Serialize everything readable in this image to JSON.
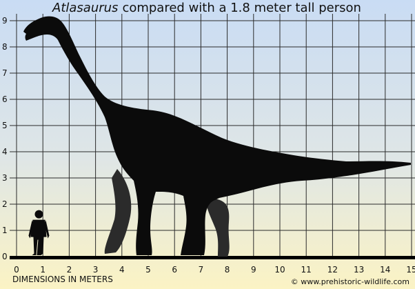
{
  "title": {
    "species": "Atlasaurus",
    "rest": "compared with a 1.8 meter tall person"
  },
  "axes": {
    "x_label": "DIMENSIONS IN METERS",
    "x_ticks": [
      "0",
      "1",
      "2",
      "3",
      "4",
      "5",
      "6",
      "7",
      "8",
      "9",
      "10",
      "11",
      "12",
      "13",
      "14",
      "15"
    ],
    "y_ticks": [
      "0",
      "1",
      "2",
      "3",
      "4",
      "5",
      "6",
      "7",
      "8",
      "9"
    ]
  },
  "credit": "© www.prehistoric-wildlife.com",
  "colors": {
    "sky_top": "#c9dcf4",
    "sky_bottom": "#fbf3c4",
    "grid": "#2a2a2a",
    "silhouette": "#0b0b0b",
    "far_legs": "#2b2b2b"
  }
}
